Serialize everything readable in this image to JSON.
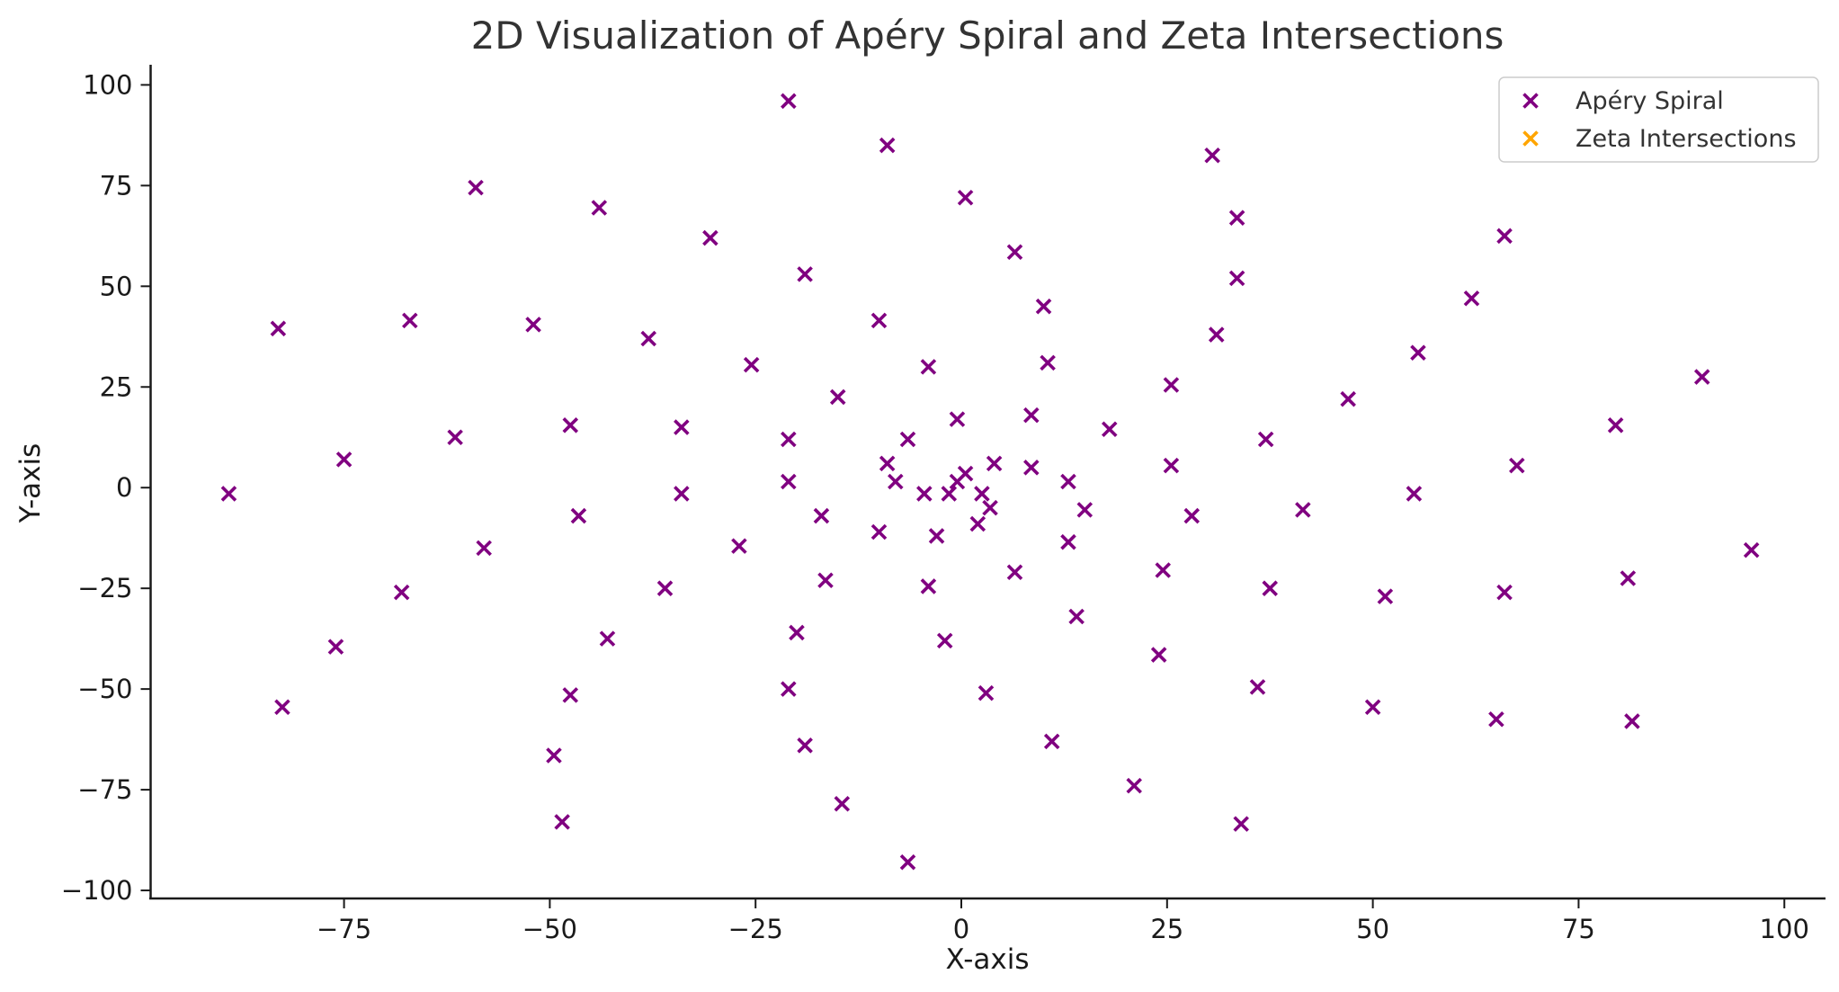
{
  "chart_data": {
    "type": "scatter",
    "title": "2D Visualization of Apéry Spiral and Zeta Intersections",
    "xlabel": "X-axis",
    "ylabel": "Y-axis",
    "xlim": [
      -98.5,
      105
    ],
    "ylim": [
      -102,
      105
    ],
    "xticks": [
      -75,
      -50,
      -25,
      0,
      25,
      50,
      75,
      100
    ],
    "yticks": [
      -100,
      -75,
      -50,
      -25,
      0,
      25,
      50,
      75,
      100
    ],
    "xtick_labels": [
      "−75",
      "−50",
      "−25",
      "0",
      "25",
      "50",
      "75",
      "100"
    ],
    "ytick_labels": [
      "−100",
      "−75",
      "−50",
      "−25",
      "0",
      "25",
      "50",
      "75",
      "100"
    ],
    "grid": false,
    "legend_position": "top-right",
    "marker": "x",
    "series": [
      {
        "name": "Apéry Spiral",
        "color": "#800080",
        "points": [
          [
            -89,
            -1.5
          ],
          [
            -83,
            39.5
          ],
          [
            -82.5,
            -54.5
          ],
          [
            -76,
            -39.5
          ],
          [
            -75,
            7
          ],
          [
            -68,
            -26
          ],
          [
            -67,
            41.5
          ],
          [
            -61.5,
            12.5
          ],
          [
            -59,
            74.5
          ],
          [
            -58,
            -15
          ],
          [
            -52,
            40.5
          ],
          [
            -49.5,
            -66.5
          ],
          [
            -48.5,
            -83
          ],
          [
            -47.5,
            15.5
          ],
          [
            -47.5,
            -51.5
          ],
          [
            -46.5,
            -7
          ],
          [
            -44,
            69.5
          ],
          [
            -43,
            -37.5
          ],
          [
            -38,
            37
          ],
          [
            -36,
            -25
          ],
          [
            -34,
            15
          ],
          [
            -34,
            -1.5
          ],
          [
            -30.5,
            62
          ],
          [
            -27,
            -14.5
          ],
          [
            -25.5,
            30.5
          ],
          [
            -21,
            96
          ],
          [
            -21,
            12
          ],
          [
            -21,
            1.5
          ],
          [
            -21,
            -50
          ],
          [
            -20,
            -36
          ],
          [
            -19,
            53
          ],
          [
            -19,
            -64
          ],
          [
            -17,
            -7
          ],
          [
            -16.5,
            -23
          ],
          [
            -15,
            22.5
          ],
          [
            -14.5,
            -78.5
          ],
          [
            -10,
            41.5
          ],
          [
            -10,
            -11
          ],
          [
            -9,
            85
          ],
          [
            -9,
            6
          ],
          [
            -8,
            1.5
          ],
          [
            -6.5,
            12
          ],
          [
            -6.5,
            -93
          ],
          [
            -4.5,
            -1.5
          ],
          [
            -4,
            30
          ],
          [
            -4,
            -24.5
          ],
          [
            -3,
            -12
          ],
          [
            -2,
            -38
          ],
          [
            -1.5,
            -1.5
          ],
          [
            -0.5,
            17
          ],
          [
            -0.5,
            1.5
          ],
          [
            0.5,
            72
          ],
          [
            0.5,
            3.5
          ],
          [
            2,
            -9
          ],
          [
            2.5,
            -1.5
          ],
          [
            3,
            -51
          ],
          [
            3.5,
            -5
          ],
          [
            4,
            6
          ],
          [
            6.5,
            58.5
          ],
          [
            6.5,
            -21
          ],
          [
            8.5,
            18
          ],
          [
            8.5,
            5
          ],
          [
            10,
            45
          ],
          [
            10.5,
            31
          ],
          [
            11,
            -63
          ],
          [
            13,
            1.5
          ],
          [
            13,
            -13.5
          ],
          [
            14,
            -32
          ],
          [
            15,
            -5.5
          ],
          [
            18,
            14.5
          ],
          [
            21,
            -74
          ],
          [
            24,
            -41.5
          ],
          [
            24.5,
            -20.5
          ],
          [
            25.5,
            25.5
          ],
          [
            25.5,
            5.5
          ],
          [
            28,
            -7
          ],
          [
            30.5,
            82.5
          ],
          [
            31,
            38
          ],
          [
            33.5,
            67
          ],
          [
            33.5,
            52
          ],
          [
            34,
            -83.5
          ],
          [
            36,
            -49.5
          ],
          [
            37,
            12
          ],
          [
            37.5,
            -25
          ],
          [
            41.5,
            -5.5
          ],
          [
            47,
            22
          ],
          [
            50,
            -54.5
          ],
          [
            51.5,
            -27
          ],
          [
            55,
            -1.5
          ],
          [
            55.5,
            33.5
          ],
          [
            62,
            47
          ],
          [
            65,
            -57.5
          ],
          [
            66,
            62.5
          ],
          [
            66,
            -26
          ],
          [
            67.5,
            5.5
          ],
          [
            79.5,
            15.5
          ],
          [
            81,
            -22.5
          ],
          [
            81.5,
            -58
          ],
          [
            90,
            27.5
          ],
          [
            96,
            -15.5
          ]
        ]
      },
      {
        "name": "Zeta Intersections",
        "color": "#FFA500",
        "points": []
      }
    ]
  }
}
